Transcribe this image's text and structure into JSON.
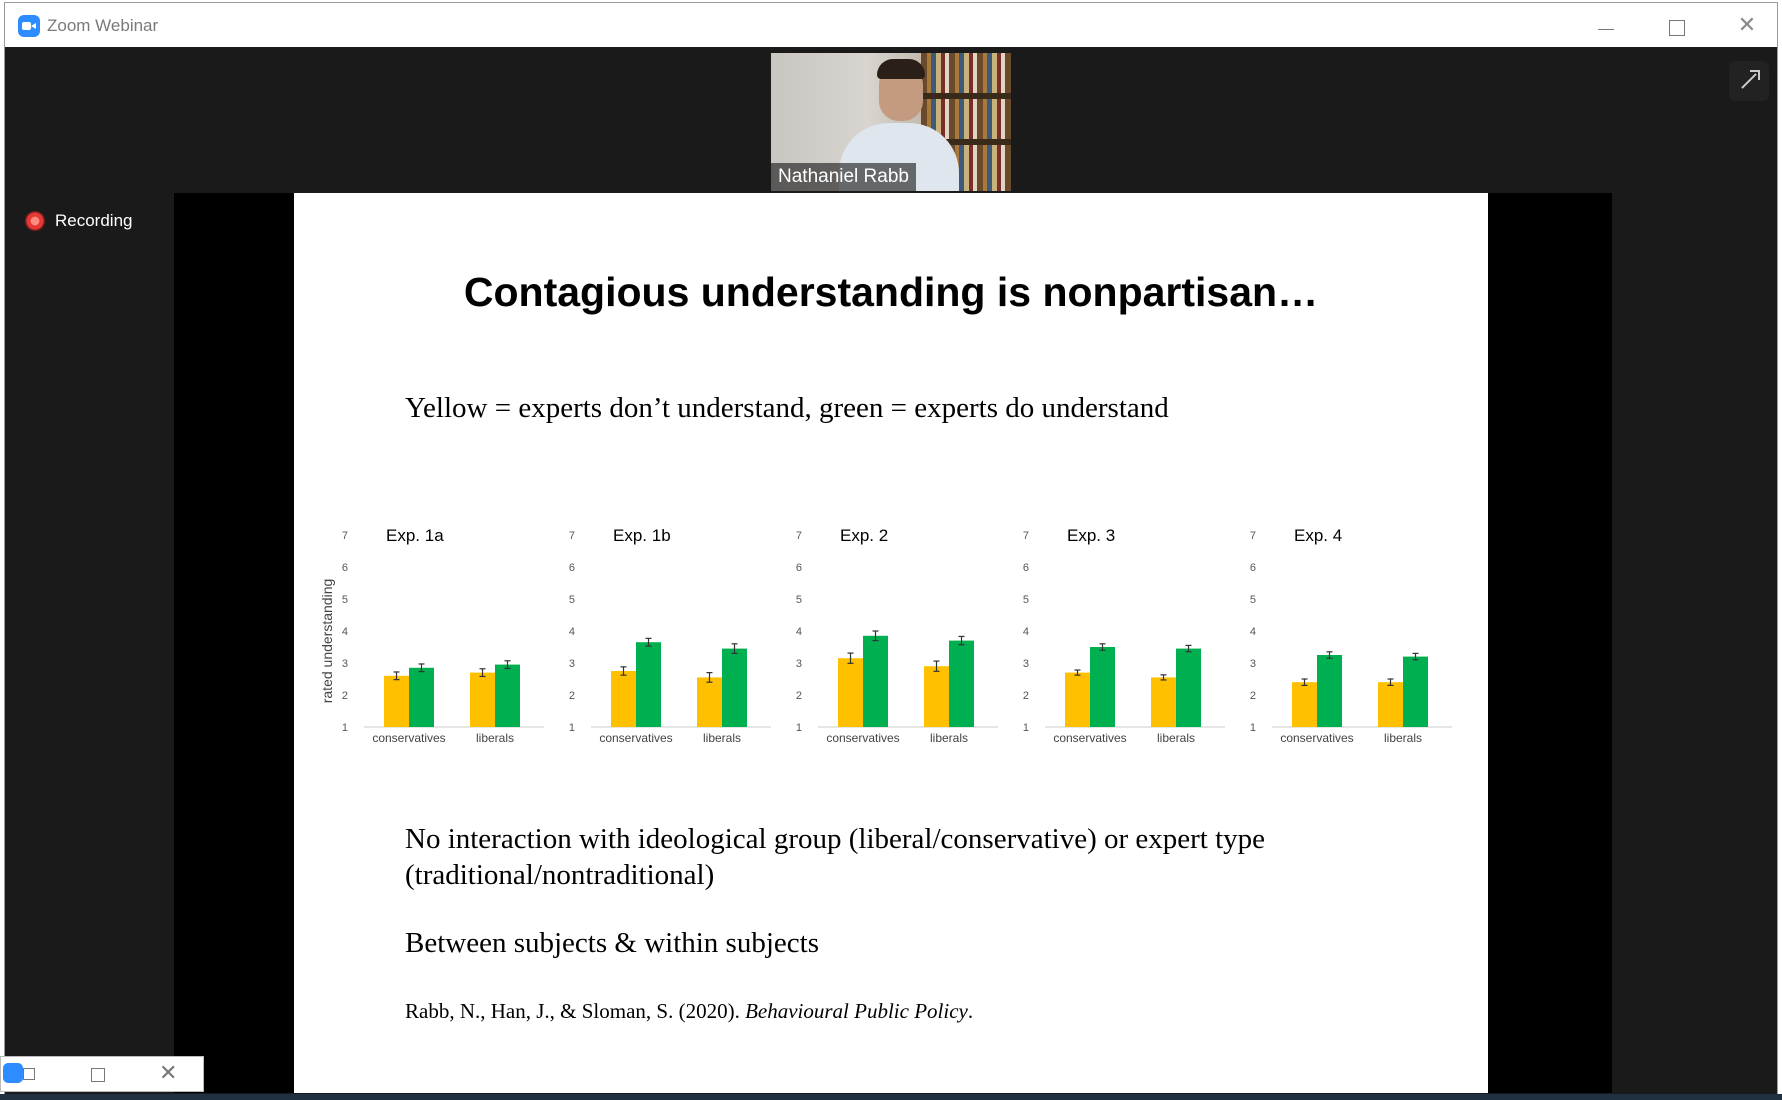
{
  "window": {
    "title": "Zoom Webinar",
    "close_glyph": "✕"
  },
  "video": {
    "participant_name": "Nathaniel Rabb"
  },
  "recording": {
    "label": "Recording"
  },
  "slide": {
    "title": "Contagious understanding is nonpartisan…",
    "legend_text": "Yellow = experts don’t understand, green = experts do understand",
    "note1": "No interaction with ideological group (liberal/conservative) or expert type (traditional/nontraditional)",
    "note2": "Between subjects & within subjects",
    "citation_prefix": "Rabb, N., Han, J., & Sloman, S. (2020). ",
    "citation_journal": "Behavioural Public Policy",
    "citation_suffix": "."
  },
  "mini_bar": {
    "close_glyph": "✕"
  },
  "colors": {
    "yellow": "#FFC000",
    "green": "#00B050",
    "recording_red": "#e53935",
    "zoom_blue": "#2d8cff"
  },
  "chart_data": [
    {
      "type": "bar",
      "title": "Exp. 1a",
      "ylabel": "rated understanding",
      "ylim": [
        1,
        7
      ],
      "yticks": [
        "1",
        "2",
        "3",
        "4",
        "5",
        "6",
        "7"
      ],
      "categories": [
        "conservatives",
        "liberals"
      ],
      "series": [
        {
          "color": "#FFC000",
          "values": [
            2.6,
            2.7
          ],
          "errors": [
            0.12,
            0.12
          ]
        },
        {
          "color": "#00B050",
          "values": [
            2.85,
            2.95
          ],
          "errors": [
            0.12,
            0.12
          ]
        }
      ]
    },
    {
      "type": "bar",
      "title": "Exp. 1b",
      "ylim": [
        1,
        7
      ],
      "yticks": [
        "1",
        "2",
        "3",
        "4",
        "5",
        "6",
        "7"
      ],
      "categories": [
        "conservatives",
        "liberals"
      ],
      "series": [
        {
          "color": "#FFC000",
          "values": [
            2.75,
            2.55
          ],
          "errors": [
            0.13,
            0.15
          ]
        },
        {
          "color": "#00B050",
          "values": [
            3.65,
            3.45
          ],
          "errors": [
            0.12,
            0.15
          ]
        }
      ]
    },
    {
      "type": "bar",
      "title": "Exp. 2",
      "ylim": [
        1,
        7
      ],
      "yticks": [
        "1",
        "2",
        "3",
        "4",
        "5",
        "6",
        "7"
      ],
      "categories": [
        "conservatives",
        "liberals"
      ],
      "series": [
        {
          "color": "#FFC000",
          "values": [
            3.15,
            2.9
          ],
          "errors": [
            0.16,
            0.16
          ]
        },
        {
          "color": "#00B050",
          "values": [
            3.85,
            3.7
          ],
          "errors": [
            0.15,
            0.13
          ]
        }
      ]
    },
    {
      "type": "bar",
      "title": "Exp. 3",
      "ylim": [
        1,
        7
      ],
      "yticks": [
        "1",
        "2",
        "3",
        "4",
        "5",
        "6",
        "7"
      ],
      "categories": [
        "conservatives",
        "liberals"
      ],
      "series": [
        {
          "color": "#FFC000",
          "values": [
            2.7,
            2.55
          ],
          "errors": [
            0.08,
            0.08
          ]
        },
        {
          "color": "#00B050",
          "values": [
            3.5,
            3.45
          ],
          "errors": [
            0.1,
            0.1
          ]
        }
      ]
    },
    {
      "type": "bar",
      "title": "Exp. 4",
      "ylim": [
        1,
        7
      ],
      "yticks": [
        "1",
        "2",
        "3",
        "4",
        "5",
        "6",
        "7"
      ],
      "categories": [
        "conservatives",
        "liberals"
      ],
      "series": [
        {
          "color": "#FFC000",
          "values": [
            2.4,
            2.4
          ],
          "errors": [
            0.1,
            0.1
          ]
        },
        {
          "color": "#00B050",
          "values": [
            3.25,
            3.2
          ],
          "errors": [
            0.1,
            0.1
          ]
        }
      ]
    }
  ]
}
